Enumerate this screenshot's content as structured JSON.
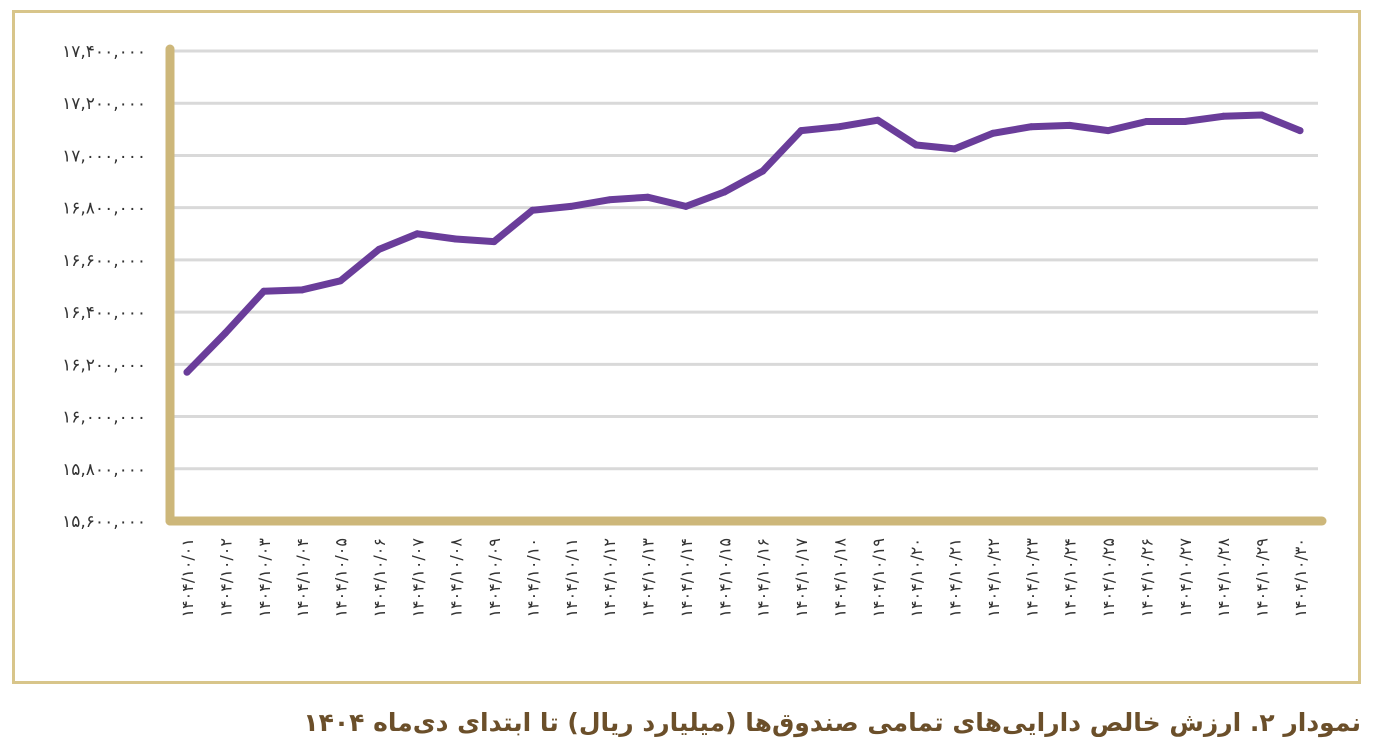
{
  "caption": "نمودار ۲. ارزش خالص دارایی‌های تمامی صندوق‌ها (میلیارد ریال) تا ابتدای دی‌ماه ۱۴۰۴",
  "colors": {
    "frame": "#d8c58a",
    "axis": "#cdb77a",
    "grid": "#d9d9d9",
    "line": "#6a3d9a",
    "caption": "#6b4f2a",
    "text": "#333333"
  },
  "chart_data": {
    "type": "line",
    "title": "",
    "xlabel": "",
    "ylabel": "",
    "ylim": [
      15600000,
      17400000
    ],
    "grid": true,
    "y_ticks": [
      {
        "value": 15600000,
        "label": "۱۵,۶۰۰,۰۰۰"
      },
      {
        "value": 15800000,
        "label": "۱۵,۸۰۰,۰۰۰"
      },
      {
        "value": 16000000,
        "label": "۱۶,۰۰۰,۰۰۰"
      },
      {
        "value": 16200000,
        "label": "۱۶,۲۰۰,۰۰۰"
      },
      {
        "value": 16400000,
        "label": "۱۶,۴۰۰,۰۰۰"
      },
      {
        "value": 16600000,
        "label": "۱۶,۶۰۰,۰۰۰"
      },
      {
        "value": 16800000,
        "label": "۱۶,۸۰۰,۰۰۰"
      },
      {
        "value": 17000000,
        "label": "۱۷,۰۰۰,۰۰۰"
      },
      {
        "value": 17200000,
        "label": "۱۷,۲۰۰,۰۰۰"
      },
      {
        "value": 17400000,
        "label": "۱۷,۴۰۰,۰۰۰"
      }
    ],
    "categories": [
      "۱۴۰۴/۱۰/۰۱",
      "۱۴۰۴/۱۰/۰۲",
      "۱۴۰۴/۱۰/۰۳",
      "۱۴۰۴/۱۰/۰۴",
      "۱۴۰۴/۱۰/۰۵",
      "۱۴۰۴/۱۰/۰۶",
      "۱۴۰۴/۱۰/۰۷",
      "۱۴۰۴/۱۰/۰۸",
      "۱۴۰۴/۱۰/۰۹",
      "۱۴۰۴/۱۰/۱۰",
      "۱۴۰۴/۱۰/۱۱",
      "۱۴۰۴/۱۰/۱۲",
      "۱۴۰۴/۱۰/۱۳",
      "۱۴۰۴/۱۰/۱۴",
      "۱۴۰۴/۱۰/۱۵",
      "۱۴۰۴/۱۰/۱۶",
      "۱۴۰۴/۱۰/۱۷",
      "۱۴۰۴/۱۰/۱۸",
      "۱۴۰۴/۱۰/۱۹",
      "۱۴۰۴/۱۰/۲۰",
      "۱۴۰۴/۱۰/۲۱",
      "۱۴۰۴/۱۰/۲۲",
      "۱۴۰۴/۱۰/۲۳",
      "۱۴۰۴/۱۰/۲۴",
      "۱۴۰۴/۱۰/۲۵",
      "۱۴۰۴/۱۰/۲۶",
      "۱۴۰۴/۱۰/۲۷",
      "۱۴۰۴/۱۰/۲۸",
      "۱۴۰۴/۱۰/۲۹",
      "۱۴۰۴/۱۰/۳۰"
    ],
    "series": [
      {
        "values": [
          16170000,
          16320000,
          16480000,
          16485000,
          16520000,
          16640000,
          16700000,
          16680000,
          16670000,
          16790000,
          16805000,
          16830000,
          16840000,
          16805000,
          16860000,
          16940000,
          17095000,
          17110000,
          17135000,
          17040000,
          17025000,
          17085000,
          17110000,
          17115000,
          17095000,
          17130000,
          17130000,
          17150000,
          17155000,
          17095000
        ]
      }
    ]
  }
}
